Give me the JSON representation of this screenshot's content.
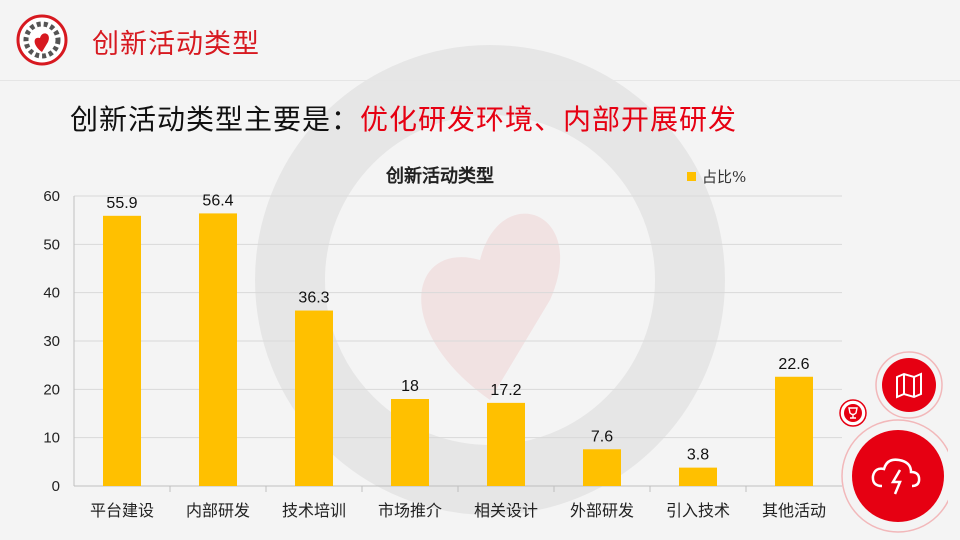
{
  "header": {
    "title": "创新活动类型",
    "logo_icon": "gear-heart-logo-icon"
  },
  "subtitle": {
    "prefix": "创新活动类型主要是：",
    "highlight": "优化研发环境、内部开展研发"
  },
  "colors": {
    "accent": "#e60012",
    "bar": "#ffc000",
    "grid": "#d9d9d9"
  },
  "chart_data": {
    "type": "bar",
    "title": "创新活动类型",
    "categories": [
      "平台建设",
      "内部研发",
      "技术培训",
      "市场推介",
      "相关设计",
      "外部研发",
      "引入技术",
      "其他活动"
    ],
    "series": [
      {
        "name": "占比%",
        "values": [
          55.9,
          56.4,
          36.3,
          18,
          17.2,
          7.6,
          3.8,
          22.6
        ]
      }
    ],
    "data_labels": [
      "55.9",
      "56.4",
      "36.3",
      "18",
      "17.2",
      "7.6",
      "3.8",
      "22.6"
    ],
    "y_ticks": [
      "0",
      "10",
      "20",
      "30",
      "40",
      "50",
      "60"
    ],
    "ylim": [
      0,
      60
    ],
    "grid": true,
    "legend_position": "top-right"
  },
  "corner_buttons": [
    {
      "icon": "map-icon"
    },
    {
      "icon": "trophy-icon"
    },
    {
      "icon": "cloud-lightning-icon"
    }
  ]
}
